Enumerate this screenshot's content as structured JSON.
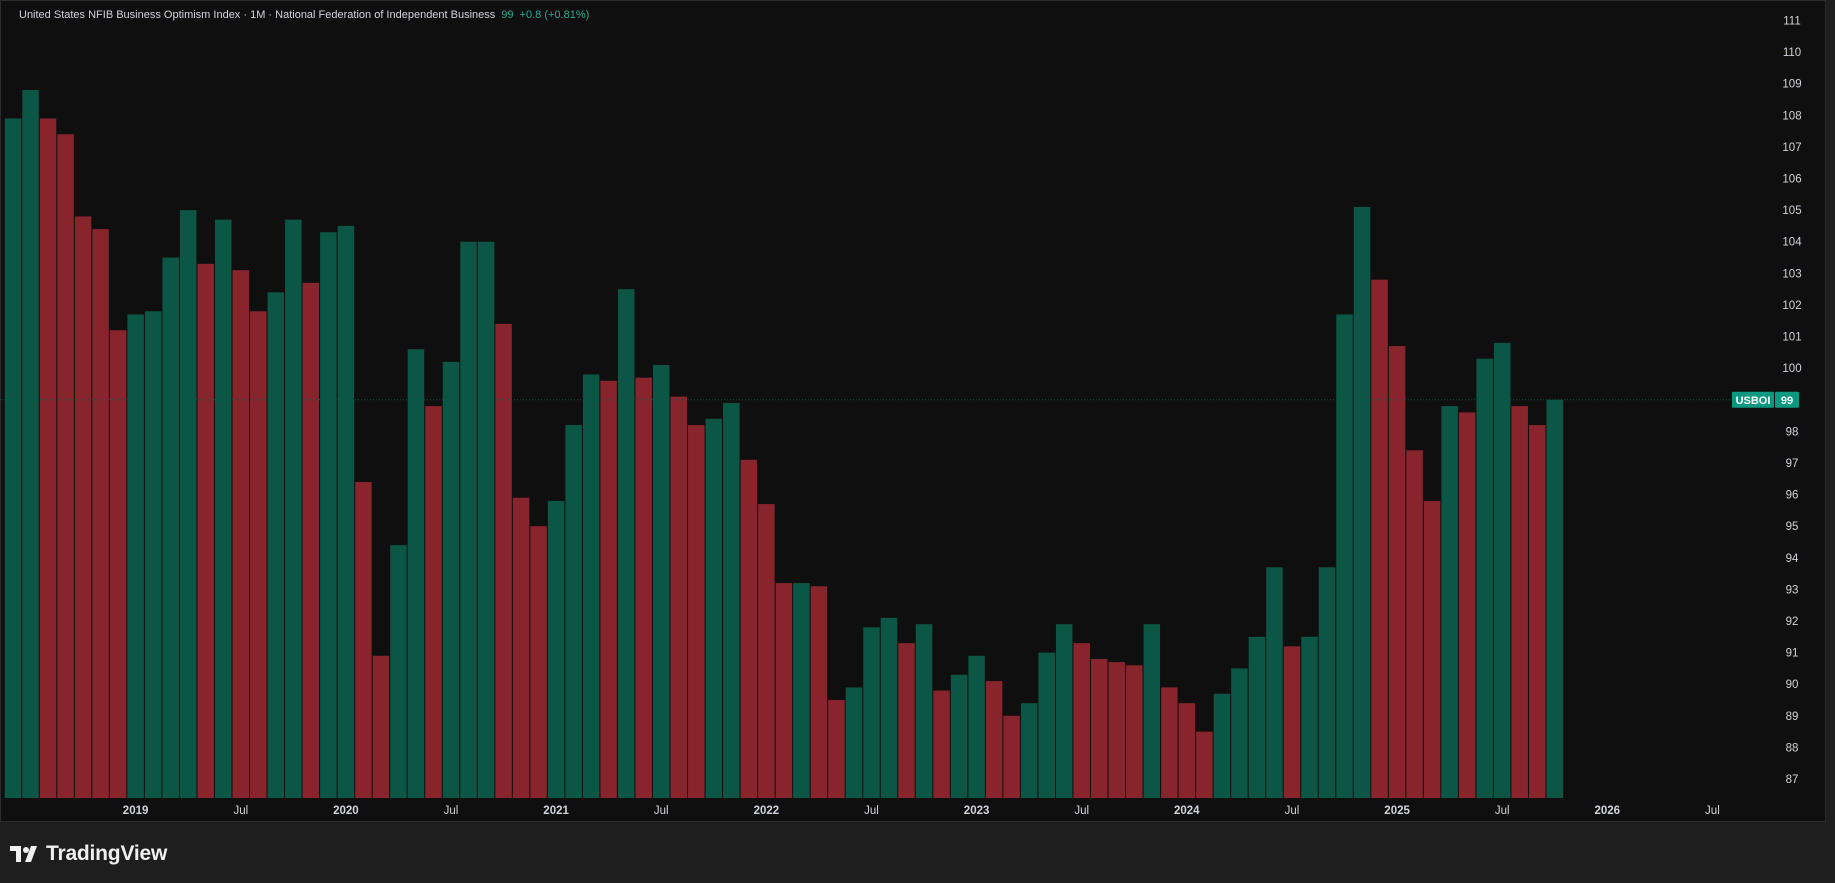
{
  "legend": {
    "title": "United States NFIB Business Optimism Index · 1M · National Federation of Independent Business",
    "last": "99",
    "change": "+0.8 (+0.81%)"
  },
  "price_tag": {
    "symbol": "USBOI",
    "value": "99"
  },
  "footer": {
    "brand": "TradingView"
  },
  "colors": {
    "up": "#0c5645",
    "down": "#87242c",
    "tag": "#089981",
    "background": "#0f0f0f",
    "axis_text": "#d1d4dc"
  },
  "chart_data": {
    "type": "bar",
    "x_start": "2018-06",
    "frequency": "monthly",
    "values": [
      107.9,
      108.8,
      107.9,
      107.4,
      104.8,
      104.4,
      101.2,
      101.7,
      101.8,
      103.5,
      105.0,
      103.3,
      104.7,
      103.1,
      101.8,
      102.4,
      104.7,
      102.7,
      104.3,
      104.5,
      96.4,
      90.9,
      94.4,
      100.6,
      98.8,
      100.2,
      104.0,
      104.0,
      101.4,
      95.9,
      95.0,
      95.8,
      98.2,
      99.8,
      99.6,
      102.5,
      99.7,
      100.1,
      99.1,
      98.2,
      98.4,
      98.9,
      97.1,
      95.7,
      93.2,
      93.2,
      93.1,
      89.5,
      89.9,
      91.8,
      92.1,
      91.3,
      91.9,
      89.8,
      90.3,
      90.9,
      90.1,
      89.0,
      89.4,
      91.0,
      91.9,
      91.3,
      90.8,
      90.7,
      90.6,
      91.9,
      89.9,
      89.4,
      88.5,
      89.7,
      90.5,
      91.5,
      93.7,
      91.2,
      91.5,
      93.7,
      101.7,
      105.1,
      102.8,
      100.7,
      97.4,
      95.8,
      98.8,
      98.6,
      100.3,
      100.8,
      98.8,
      98.2,
      99.0
    ],
    "x_ticks": [
      "2019",
      "Jul",
      "2020",
      "Jul",
      "2021",
      "Jul",
      "2022",
      "Jul",
      "2023",
      "Jul",
      "2024",
      "Jul",
      "2025",
      "Jul",
      "2026",
      "Jul"
    ],
    "y_ticks": [
      "87",
      "88",
      "89",
      "90",
      "91",
      "92",
      "93",
      "94",
      "95",
      "96",
      "97",
      "98",
      "99",
      "100",
      "101",
      "102",
      "103",
      "104",
      "105",
      "106",
      "107",
      "108",
      "109",
      "110",
      "111"
    ],
    "ylim": [
      86.4,
      111.3
    ],
    "last_value": 99
  }
}
